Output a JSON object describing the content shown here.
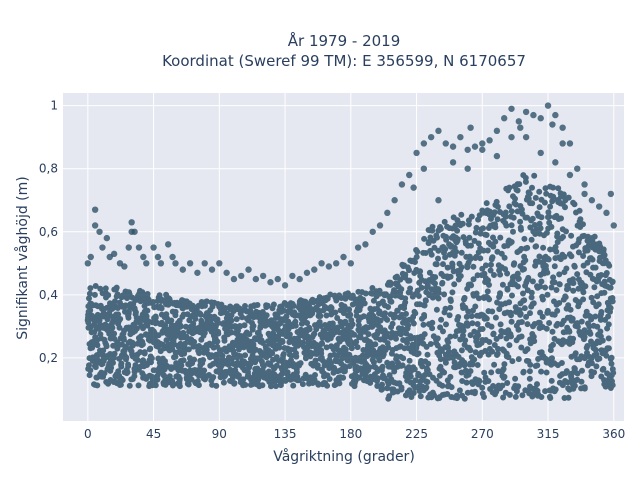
{
  "chart_data": {
    "type": "scatter",
    "title_line1": "År 1979 - 2019",
    "title_line2": "Koordinat (Sweref 99 TM): E 356599, N 6170657",
    "xlabel": "Vågriktning (grader)",
    "ylabel": "Signifikant våghöjd (m)",
    "xlim": [
      -17,
      367
    ],
    "ylim": [
      0,
      1.04
    ],
    "xticks": [
      0,
      45,
      90,
      135,
      180,
      225,
      270,
      315,
      360
    ],
    "xtick_labels": [
      "0",
      "45",
      "90",
      "135",
      "180",
      "225",
      "270",
      "315",
      "360"
    ],
    "yticks": [
      0.2,
      0.4,
      0.6,
      0.8,
      1.0
    ],
    "ytick_labels": [
      "0,2",
      "0,4",
      "0,6",
      "0,8",
      "1"
    ],
    "grid": true,
    "marker_color": "#2f5169",
    "plot_background": "#e5e8f0",
    "series": [
      {
        "x": [
          0,
          2,
          5,
          8,
          10,
          13,
          15,
          18,
          22,
          25,
          28,
          30,
          32,
          35,
          38,
          40,
          45,
          48,
          50,
          55,
          58,
          60,
          65,
          70,
          75,
          80,
          85,
          90,
          95,
          100,
          105,
          110,
          115,
          120,
          125,
          130,
          135,
          140,
          145,
          150,
          155,
          160,
          165,
          170,
          175,
          180,
          185,
          190,
          195,
          200,
          205,
          210,
          215,
          220,
          225,
          230,
          235,
          240,
          245,
          250,
          255,
          260,
          265,
          270,
          275,
          280,
          285,
          290,
          295,
          300,
          305,
          310,
          315,
          320,
          325,
          330,
          335,
          340,
          345,
          350,
          355,
          358,
          360,
          5,
          30,
          300,
          310,
          320,
          296,
          330,
          340,
          270,
          260,
          250,
          240,
          230,
          223,
          280,
          290,
          318,
          325,
          262
        ],
        "y": [
          0.5,
          0.52,
          0.67,
          0.6,
          0.55,
          0.58,
          0.52,
          0.53,
          0.5,
          0.49,
          0.55,
          0.63,
          0.6,
          0.55,
          0.52,
          0.5,
          0.55,
          0.52,
          0.5,
          0.56,
          0.52,
          0.5,
          0.48,
          0.5,
          0.47,
          0.5,
          0.48,
          0.5,
          0.47,
          0.45,
          0.46,
          0.48,
          0.45,
          0.46,
          0.44,
          0.45,
          0.43,
          0.46,
          0.45,
          0.47,
          0.48,
          0.5,
          0.49,
          0.5,
          0.52,
          0.5,
          0.55,
          0.56,
          0.6,
          0.62,
          0.66,
          0.7,
          0.75,
          0.78,
          0.85,
          0.88,
          0.9,
          0.92,
          0.88,
          0.87,
          0.9,
          0.86,
          0.87,
          0.88,
          0.89,
          0.92,
          0.96,
          0.99,
          0.95,
          0.98,
          0.97,
          0.96,
          1.0,
          0.97,
          0.93,
          0.88,
          0.8,
          0.75,
          0.7,
          0.68,
          0.66,
          0.72,
          0.62,
          0.62,
          0.6,
          0.9,
          0.85,
          0.82,
          0.93,
          0.78,
          0.72,
          0.86,
          0.8,
          0.82,
          0.7,
          0.8,
          0.74,
          0.84,
          0.9,
          0.94,
          0.88,
          0.93
        ]
      }
    ]
  }
}
